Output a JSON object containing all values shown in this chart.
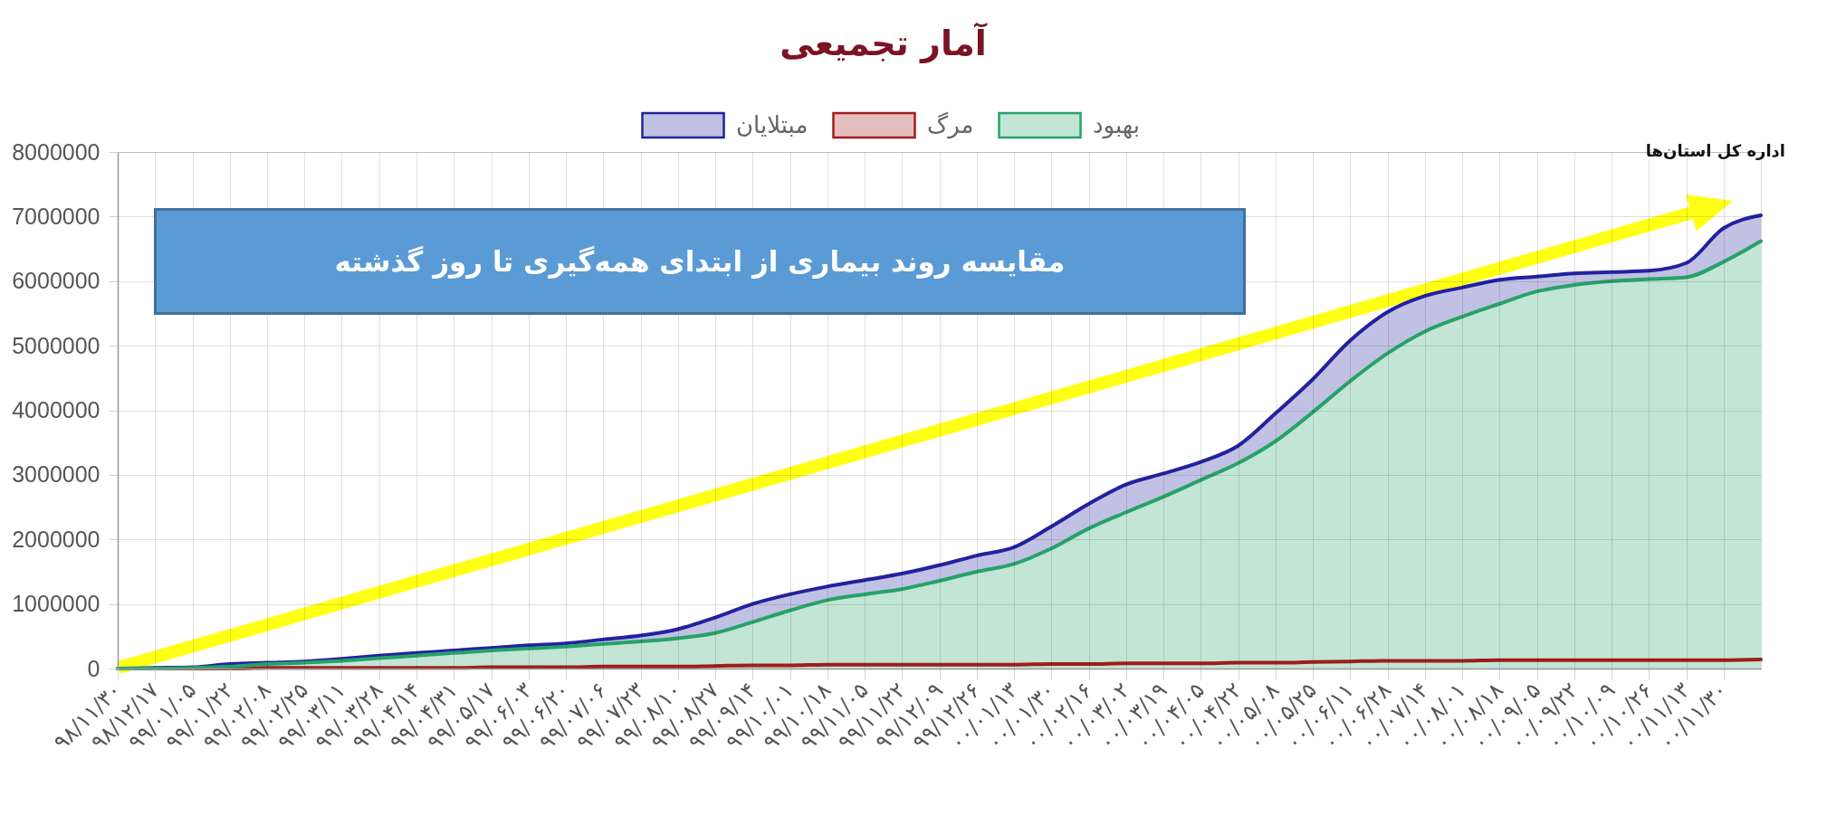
{
  "chart_data": {
    "type": "area",
    "title": "آمار تجمیعی",
    "categories": [
      "۹۸/۱۱/۳۰",
      "۹۸/۱۲/۱۷",
      "۹۹/۰۱/۰۵",
      "۹۹/۰۱/۲۲",
      "۹۹/۰۲/۰۸",
      "۹۹/۰۲/۲۵",
      "۹۹/۰۳/۱۱",
      "۹۹/۰۳/۲۸",
      "۹۹/۰۴/۱۴",
      "۹۹/۰۴/۳۱",
      "۹۹/۰۵/۱۷",
      "۹۹/۰۶/۰۳",
      "۹۹/۰۶/۲۰",
      "۹۹/۰۷/۰۶",
      "۹۹/۰۷/۲۳",
      "۹۹/۰۸/۱۰",
      "۹۹/۰۸/۲۷",
      "۹۹/۰۹/۱۴",
      "۹۹/۱۰/۰۱",
      "۹۹/۱۰/۱۸",
      "۹۹/۱۱/۰۵",
      "۹۹/۱۱/۲۲",
      "۹۹/۱۲/۰۹",
      "۹۹/۱۲/۲۶",
      "۰۰/۰۱/۱۳",
      "۰۰/۰۱/۳۰",
      "۰۰/۰۲/۱۶",
      "۰۰/۰۳/۰۲",
      "۰۰/۰۳/۱۹",
      "۰۰/۰۴/۰۵",
      "۰۰/۰۴/۲۲",
      "۰۰/۰۵/۰۸",
      "۰۰/۰۵/۲۵",
      "۰۰/۰۶/۱۱",
      "۰۰/۰۶/۲۸",
      "۰۰/۰۷/۱۴",
      "۰۰/۰۸/۰۱",
      "۰۰/۰۸/۱۸",
      "۰۰/۰۹/۰۵",
      "۰۰/۰۹/۲۲",
      "۰۰/۱۰/۰۹",
      "۰۰/۱۰/۲۶",
      "۰۰/۱۱/۱۳",
      "۰۰/۱۱/۳۰",
      null
    ],
    "ylim": [
      0,
      8000000
    ],
    "yticks": [
      0,
      1000000,
      2000000,
      3000000,
      4000000,
      5000000,
      6000000,
      7000000,
      8000000
    ],
    "series": [
      {
        "name": "مبتلایان",
        "color": "#2222a0",
        "values": [
          0,
          10000,
          20000,
          70000,
          90000,
          110000,
          150000,
          200000,
          240000,
          280000,
          320000,
          360000,
          390000,
          450000,
          510000,
          610000,
          790000,
          1000000,
          1150000,
          1270000,
          1370000,
          1470000,
          1600000,
          1750000,
          1880000,
          2200000,
          2550000,
          2850000,
          3020000,
          3200000,
          3450000,
          3950000,
          4480000,
          5080000,
          5520000,
          5770000,
          5900000,
          6020000,
          6070000,
          6120000,
          6140000,
          6160000,
          6280000,
          6820000,
          7020000
        ]
      },
      {
        "name": "مرگ",
        "color": "#a01c1c",
        "values": [
          0,
          0,
          0,
          0,
          10000,
          10000,
          10000,
          10000,
          10000,
          10000,
          20000,
          20000,
          20000,
          30000,
          30000,
          30000,
          40000,
          50000,
          50000,
          60000,
          60000,
          60000,
          60000,
          60000,
          60000,
          70000,
          70000,
          80000,
          80000,
          80000,
          90000,
          90000,
          100000,
          110000,
          120000,
          120000,
          120000,
          130000,
          130000,
          130000,
          130000,
          130000,
          130000,
          130000,
          140000
        ]
      },
      {
        "name": "بهبود",
        "color": "#26a269",
        "values": [
          0,
          0,
          10000,
          30000,
          70000,
          90000,
          120000,
          160000,
          200000,
          240000,
          280000,
          310000,
          340000,
          380000,
          420000,
          470000,
          550000,
          720000,
          900000,
          1060000,
          1150000,
          1230000,
          1360000,
          1500000,
          1620000,
          1860000,
          2170000,
          2420000,
          2660000,
          2920000,
          3180000,
          3520000,
          3970000,
          4450000,
          4880000,
          5220000,
          5450000,
          5650000,
          5840000,
          5940000,
          6000000,
          6030000,
          6060000,
          6300000,
          6620000
        ]
      }
    ],
    "grid": true,
    "legend": "top",
    "annotations": [
      "مقایسه روند بیماری از ابتدای همه‌گیری تا روز گذشته",
      "اداره کل استان‌ها"
    ]
  }
}
